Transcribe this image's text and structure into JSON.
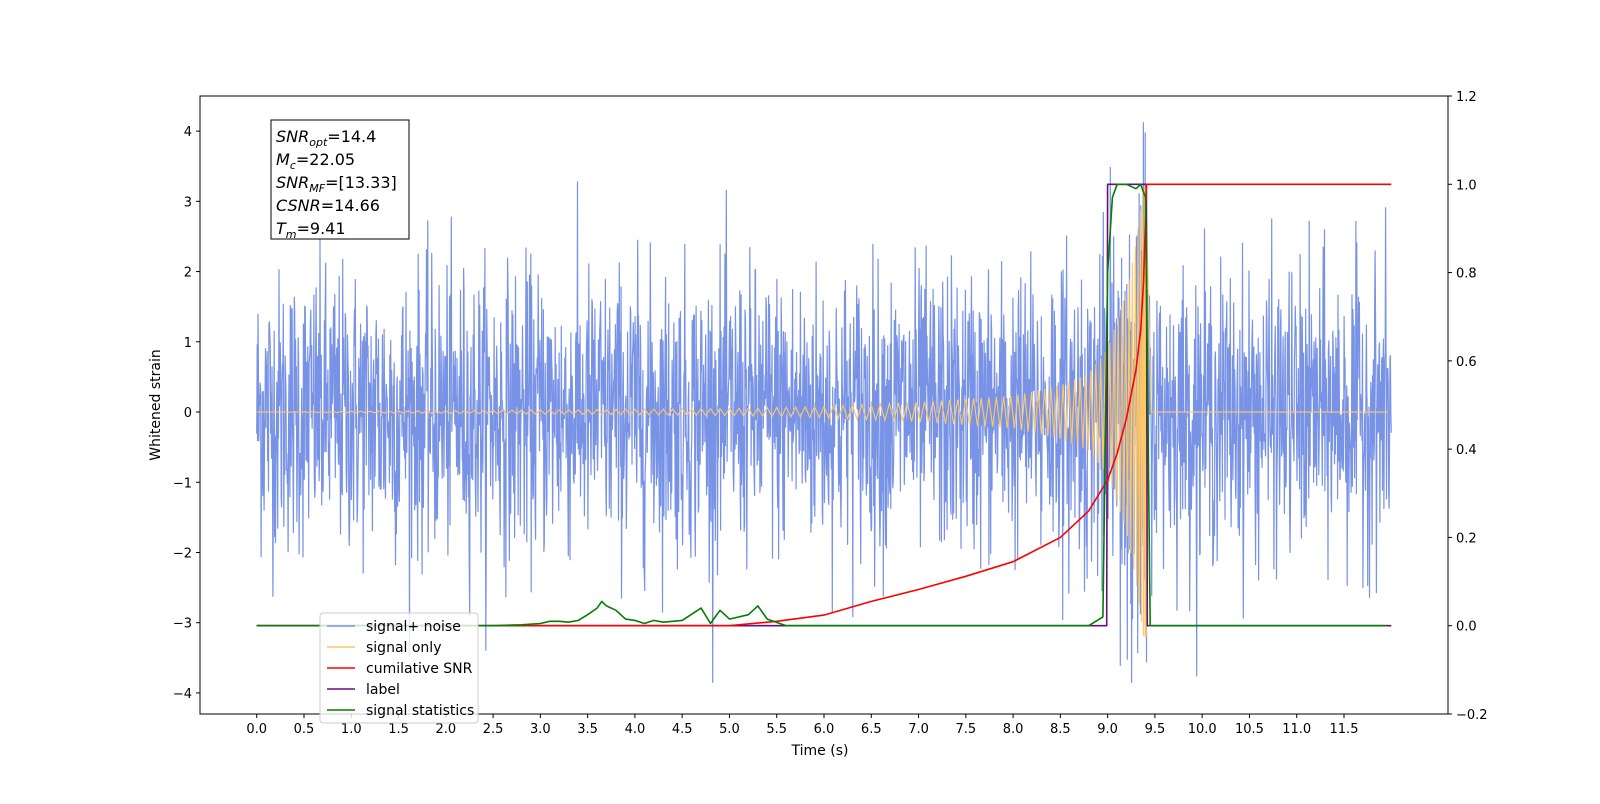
{
  "chart_data": {
    "type": "line",
    "xlabel": "Time (s)",
    "ylabel": "Whitened strain",
    "xlim": [
      -0.6,
      12.6
    ],
    "ylim": [
      -4.3,
      4.5
    ],
    "y2lim": [
      -0.2,
      1.2
    ],
    "x_ticks": [
      "0.0",
      "0.5",
      "1.0",
      "1.5",
      "2.0",
      "2.5",
      "3.0",
      "3.5",
      "4.0",
      "4.5",
      "5.0",
      "5.5",
      "6.0",
      "6.5",
      "7.0",
      "7.5",
      "8.0",
      "8.5",
      "9.0",
      "9.5",
      "10.0",
      "10.5",
      "11.0",
      "11.5"
    ],
    "y_ticks": [
      "4",
      "3",
      "2",
      "1",
      "0",
      "−1",
      "−2",
      "−3",
      "−4"
    ],
    "y2_ticks": [
      "1.2",
      "1.0",
      "0.8",
      "0.6",
      "0.4",
      "0.2",
      "0.0",
      "−0.2"
    ],
    "stats": [
      {
        "base": "SNR",
        "sub": "opt",
        "value": "=14.4"
      },
      {
        "base": "M",
        "sub": "c",
        "value": "=22.05"
      },
      {
        "base": "SNR",
        "sub": "MF",
        "value": "=[13.33]"
      },
      {
        "base": "CSNR",
        "sub": "",
        "value": "=14.66"
      },
      {
        "base": "T",
        "sub": "m",
        "value": "=9.41"
      }
    ],
    "legend": {
      "position": "lower-left",
      "entries": [
        {
          "label": "signal+ noise",
          "color": "#7893e6"
        },
        {
          "label": "signal only",
          "color": "#ffc766"
        },
        {
          "label": "cumilative SNR",
          "color": "#ff0000"
        },
        {
          "label": "label",
          "color": "#6a0d83"
        },
        {
          "label": "signal statistics",
          "color": "#007f00"
        }
      ]
    },
    "series": [
      {
        "name": "signal+ noise",
        "axis": "left",
        "color": "#7893e6",
        "x_range": [
          0.0,
          12.0
        ],
        "noise_std": 1.0,
        "approx_y_range": [
          -3.85,
          4.12
        ]
      },
      {
        "name": "signal only",
        "axis": "left",
        "color": "#ffc766",
        "chirp_end_time": 9.41,
        "amplitude_points": [
          [
            0.0,
            0.0
          ],
          [
            5.0,
            0.05
          ],
          [
            6.0,
            0.08
          ],
          [
            7.0,
            0.14
          ],
          [
            8.0,
            0.23
          ],
          [
            8.5,
            0.38
          ],
          [
            8.8,
            0.55
          ],
          [
            9.0,
            0.9
          ],
          [
            9.2,
            1.7
          ],
          [
            9.3,
            2.4
          ],
          [
            9.38,
            3.2
          ],
          [
            9.41,
            3.2
          ],
          [
            9.42,
            0.0
          ],
          [
            12.0,
            0.0
          ]
        ]
      },
      {
        "name": "cumilative SNR",
        "axis": "right",
        "color": "#ff0000",
        "x": [
          0.0,
          5.0,
          5.5,
          6.0,
          6.5,
          7.0,
          7.5,
          8.0,
          8.5,
          8.8,
          9.0,
          9.1,
          9.2,
          9.3,
          9.35,
          9.38,
          9.4,
          9.41,
          12.0
        ],
        "y": [
          0.0,
          0.0,
          0.01,
          0.024,
          0.055,
          0.082,
          0.112,
          0.145,
          0.2,
          0.26,
          0.33,
          0.39,
          0.47,
          0.58,
          0.67,
          0.78,
          0.92,
          1.0,
          1.0
        ]
      },
      {
        "name": "label",
        "axis": "right",
        "color": "#6a0d83",
        "x": [
          0.0,
          8.99,
          9.0,
          9.41,
          9.42,
          12.0
        ],
        "y": [
          0.0,
          0.0,
          1.0,
          1.0,
          0.0,
          0.0
        ]
      },
      {
        "name": "signal statistics",
        "axis": "right",
        "color": "#007f00",
        "x": [
          0.0,
          2.5,
          2.8,
          3.0,
          3.1,
          3.2,
          3.3,
          3.4,
          3.5,
          3.6,
          3.65,
          3.7,
          3.8,
          3.9,
          4.0,
          4.1,
          4.2,
          4.3,
          4.5,
          4.7,
          4.8,
          4.9,
          5.0,
          5.2,
          5.3,
          5.4,
          5.6,
          8.8,
          8.95,
          9.0,
          9.05,
          9.1,
          9.2,
          9.3,
          9.35,
          9.4,
          9.45,
          11.95
        ],
        "y": [
          0.0,
          0.0,
          0.002,
          0.005,
          0.01,
          0.01,
          0.008,
          0.012,
          0.025,
          0.04,
          0.055,
          0.045,
          0.035,
          0.015,
          0.012,
          0.005,
          0.012,
          0.008,
          0.012,
          0.04,
          0.005,
          0.035,
          0.015,
          0.025,
          0.045,
          0.015,
          0.0,
          0.0,
          0.02,
          0.8,
          0.97,
          1.0,
          1.0,
          0.99,
          1.0,
          0.97,
          0.0,
          0.0
        ]
      }
    ]
  }
}
